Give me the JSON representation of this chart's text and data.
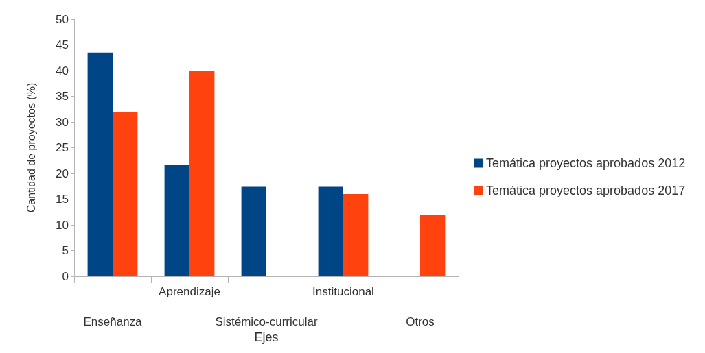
{
  "chart_data": {
    "type": "bar",
    "xlabel": "Ejes",
    "ylabel": "Cantidad de proyectos (%)",
    "categories": [
      "Enseñanza",
      "Aprendizaje",
      "Sistémico-curricular",
      "Institucional",
      "Otros"
    ],
    "series": [
      {
        "name": "Temática proyectos aprobados 2012",
        "color": "#004586",
        "values": [
          43.5,
          21.7,
          17.4,
          17.4,
          0
        ]
      },
      {
        "name": "Temática proyectos aprobados 2017",
        "color": "#ff420e",
        "values": [
          32,
          40,
          0,
          16,
          12
        ]
      }
    ],
    "ylim": [
      0,
      50
    ],
    "yticks": [
      0,
      5,
      10,
      15,
      20,
      25,
      30,
      35,
      40,
      45,
      50
    ],
    "grid": false,
    "legend": "right"
  }
}
